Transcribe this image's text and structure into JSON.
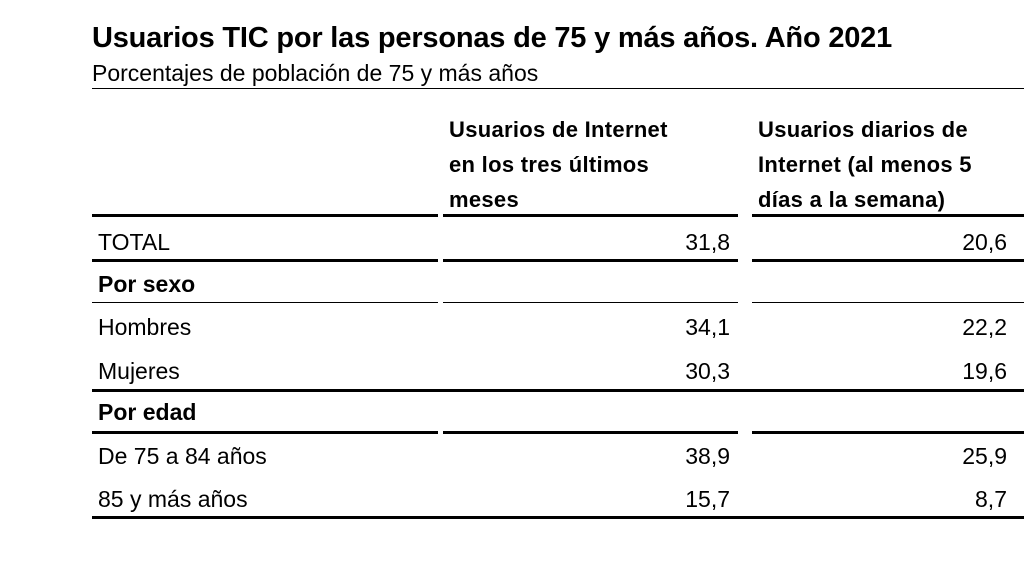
{
  "title": "Usuarios TIC por las personas de 75 y más años. Año 2021",
  "subtitle": "Porcentajes de población de 75 y más años",
  "columns": {
    "col1_lines": [
      "Usuarios de Internet",
      "en los tres últimos",
      "meses"
    ],
    "col2_lines": [
      "Usuarios diarios de",
      "Internet (al menos 5",
      "días a la semana)"
    ]
  },
  "rows": [
    {
      "label": "TOTAL",
      "v1": "31,8",
      "v2": "20,6"
    },
    {
      "label": "Por sexo",
      "v1": "",
      "v2": ""
    },
    {
      "label": "Hombres",
      "v1": "34,1",
      "v2": "22,2"
    },
    {
      "label": "Mujeres",
      "v1": "30,3",
      "v2": "19,6"
    },
    {
      "label": "Por edad",
      "v1": "",
      "v2": ""
    },
    {
      "label": "De 75 a 84 años",
      "v1": "38,9",
      "v2": "25,9"
    },
    {
      "label": "85 y más años",
      "v1": "15,7",
      "v2": "8,7"
    }
  ]
}
